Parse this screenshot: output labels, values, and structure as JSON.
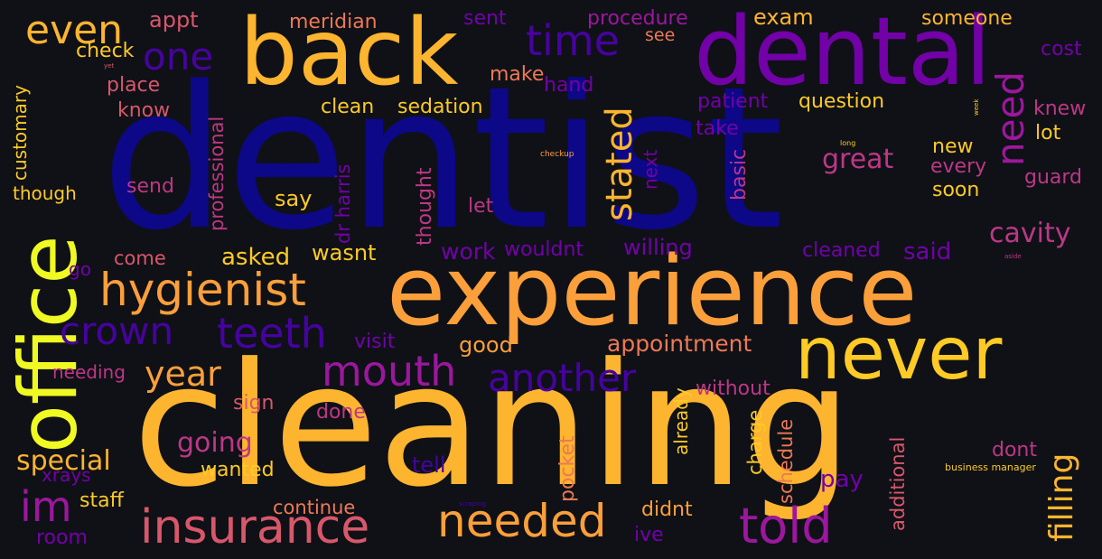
{
  "colors": {
    "background": "#0f1117",
    "navy": "#0d0887",
    "indigo": "#46039f",
    "violet": "#7201a8",
    "purple": "#9c179e",
    "magenta": "#bd3786",
    "pink": "#d8576b",
    "coral": "#ed7953",
    "orange": "#fb9f3a",
    "amber": "#fdca26",
    "yellow": "#f0f921"
  },
  "words": {
    "dentist": "dentist",
    "cleaning": "cleaning",
    "experience": "experience",
    "back": "back",
    "dental": "dental",
    "office": "office",
    "never": "never",
    "hygienist": "hygienist",
    "insurance": "insurance",
    "needed": "needed",
    "told": "told",
    "mouth": "mouth",
    "teeth": "teeth",
    "crown": "crown",
    "time": "time",
    "one": "one",
    "even": "even",
    "another": "another",
    "year": "year",
    "im": "im",
    "stated": "stated",
    "need": "need",
    "filling": "filling",
    "appointment": "appointment",
    "special": "special",
    "going": "going",
    "great": "great",
    "cavity": "cavity",
    "appt": "appt",
    "meridian": "meridian",
    "sent": "sent",
    "procedure": "procedure",
    "exam": "exam",
    "someone": "someone",
    "cost": "cost",
    "check": "check",
    "see": "see",
    "make": "make",
    "hand": "hand",
    "place": "place",
    "know": "know",
    "clean": "clean",
    "sedation": "sedation",
    "patient": "patient",
    "question": "question",
    "knew": "knew",
    "lot": "lot",
    "take": "take",
    "customary": "customary",
    "though": "though",
    "send": "send",
    "professional": "professional",
    "say": "say",
    "dr_harris": "dr harris",
    "thought": "thought",
    "let": "let",
    "next": "next",
    "basic": "basic",
    "new": "new",
    "every": "every",
    "guard": "guard",
    "soon": "soon",
    "come": "come",
    "asked": "asked",
    "wasnt": "wasnt",
    "work": "work",
    "wouldnt": "wouldnt",
    "willing": "willing",
    "cleaned": "cleaned",
    "said": "said",
    "go": "go",
    "visit": "visit",
    "good": "good",
    "needing": "needing",
    "sign": "sign",
    "done": "done",
    "already": "already",
    "without": "without",
    "charge": "charge",
    "schedule": "schedule",
    "additional": "additional",
    "dont": "dont",
    "wanted": "wanted",
    "tell": "tell",
    "pocket": "pocket",
    "pay": "pay",
    "xrays": "xrays",
    "staff": "staff",
    "continue": "continue",
    "didnt": "didnt",
    "room": "room",
    "ive": "ive",
    "business_manager": "business manager",
    "checkup": "checkup",
    "long": "long",
    "week": "week",
    "yet": "yet",
    "aside": "aside",
    "scraping": "scraping"
  }
}
